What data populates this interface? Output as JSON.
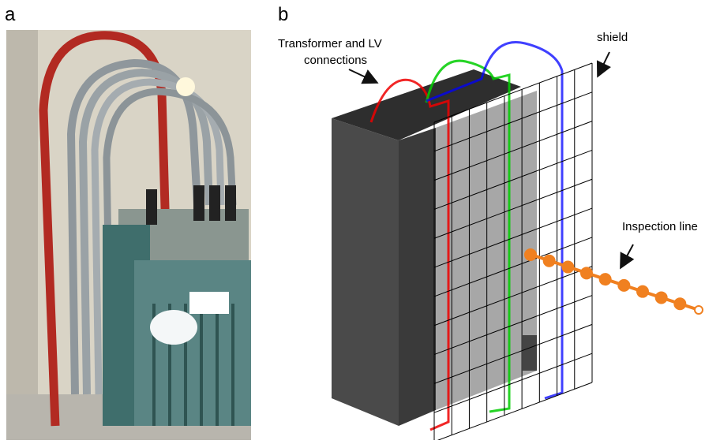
{
  "panels": [
    {
      "label": "a"
    },
    {
      "label": "b",
      "annotations": {
        "connections": [
          "Transformer and LV",
          "connections"
        ],
        "shield": "shield",
        "inspection": "Inspection line"
      }
    }
  ]
}
